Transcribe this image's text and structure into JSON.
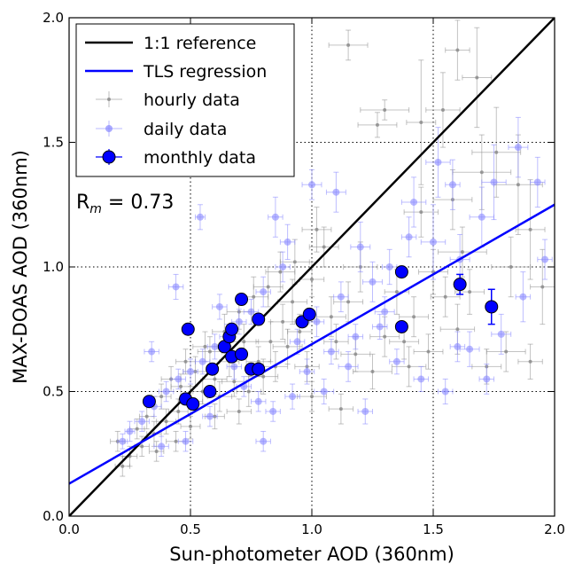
{
  "chart_data": {
    "type": "scatter",
    "xlabel": "Sun-photometer AOD (360nm)",
    "ylabel": "MAX-DOAS AOD (360nm)",
    "xlim": [
      0.0,
      2.0
    ],
    "ylim": [
      0.0,
      2.0
    ],
    "x_ticks": [
      0.0,
      0.5,
      1.0,
      1.5,
      2.0
    ],
    "y_ticks": [
      0.0,
      0.5,
      1.0,
      1.5,
      2.0
    ],
    "x_tick_labels": [
      "0.0",
      "0.5",
      "1.0",
      "1.5",
      "2.0"
    ],
    "y_tick_labels": [
      "0.0",
      "0.5",
      "1.0",
      "1.5",
      "2.0"
    ],
    "grid": "dotted, at major ticks",
    "legend_position": "top-left",
    "annotation": {
      "prefix": "R",
      "subscript": "m",
      "suffix": " = 0.73"
    },
    "series": [
      {
        "name": "1:1 reference",
        "kind": "line",
        "color": "#000000",
        "points": [
          [
            0.0,
            0.0
          ],
          [
            2.0,
            2.0
          ]
        ]
      },
      {
        "name": "TLS regression",
        "kind": "line",
        "color": "#0000ff",
        "points": [
          [
            0.0,
            0.13
          ],
          [
            2.0,
            1.25
          ]
        ]
      },
      {
        "name": "hourly data",
        "kind": "errorbar",
        "color": "#888888",
        "points": [
          [
            1.15,
            1.89,
            0.08,
            0.06
          ],
          [
            1.6,
            1.87,
            0.05,
            0.12
          ],
          [
            1.68,
            1.76,
            0.06,
            0.2
          ],
          [
            1.54,
            1.63,
            0.07,
            0.15
          ],
          [
            1.3,
            1.63,
            0.1,
            0.04
          ],
          [
            1.27,
            1.57,
            0.08,
            0.05
          ],
          [
            1.76,
            1.46,
            0.1,
            0.18
          ],
          [
            1.45,
            1.58,
            0.06,
            0.25
          ],
          [
            1.7,
            1.38,
            0.12,
            0.15
          ],
          [
            1.85,
            1.33,
            0.1,
            0.2
          ],
          [
            1.58,
            1.27,
            0.08,
            0.12
          ],
          [
            1.9,
            1.15,
            0.06,
            0.2
          ],
          [
            1.62,
            1.06,
            0.1,
            0.1
          ],
          [
            1.82,
            1.0,
            0.08,
            0.12
          ],
          [
            1.95,
            0.92,
            0.05,
            0.15
          ],
          [
            1.6,
            0.75,
            0.07,
            0.1
          ],
          [
            1.8,
            0.66,
            0.08,
            0.08
          ],
          [
            1.72,
            0.6,
            0.06,
            0.07
          ],
          [
            1.4,
            0.6,
            0.07,
            0.08
          ],
          [
            1.12,
            0.43,
            0.05,
            0.06
          ],
          [
            1.0,
            0.48,
            0.06,
            0.06
          ],
          [
            1.25,
            0.58,
            0.08,
            0.07
          ],
          [
            1.3,
            0.72,
            0.06,
            0.08
          ],
          [
            1.35,
            0.9,
            0.05,
            0.09
          ],
          [
            1.2,
            1.0,
            0.07,
            0.1
          ],
          [
            1.05,
            1.08,
            0.06,
            0.08
          ],
          [
            1.0,
            0.95,
            0.05,
            0.07
          ],
          [
            0.92,
            0.86,
            0.06,
            0.09
          ],
          [
            0.88,
            0.78,
            0.05,
            0.07
          ],
          [
            0.83,
            0.7,
            0.06,
            0.08
          ],
          [
            0.78,
            0.62,
            0.05,
            0.06
          ],
          [
            0.72,
            0.7,
            0.06,
            0.07
          ],
          [
            0.66,
            0.62,
            0.04,
            0.06
          ],
          [
            0.6,
            0.55,
            0.05,
            0.06
          ],
          [
            0.55,
            0.5,
            0.04,
            0.05
          ],
          [
            0.5,
            0.46,
            0.05,
            0.06
          ],
          [
            0.45,
            0.42,
            0.04,
            0.05
          ],
          [
            0.4,
            0.38,
            0.04,
            0.05
          ],
          [
            0.35,
            0.33,
            0.03,
            0.05
          ],
          [
            0.3,
            0.28,
            0.03,
            0.04
          ],
          [
            0.25,
            0.24,
            0.03,
            0.04
          ],
          [
            0.2,
            0.3,
            0.03,
            0.04
          ],
          [
            0.22,
            0.2,
            0.03,
            0.04
          ],
          [
            0.28,
            0.35,
            0.03,
            0.04
          ],
          [
            0.38,
            0.48,
            0.04,
            0.05
          ],
          [
            0.42,
            0.55,
            0.04,
            0.05
          ],
          [
            0.48,
            0.62,
            0.04,
            0.05
          ],
          [
            0.52,
            0.58,
            0.05,
            0.06
          ],
          [
            0.58,
            0.66,
            0.05,
            0.06
          ],
          [
            0.62,
            0.48,
            0.05,
            0.06
          ],
          [
            0.68,
            0.54,
            0.05,
            0.06
          ],
          [
            0.74,
            0.5,
            0.05,
            0.06
          ],
          [
            0.8,
            0.56,
            0.06,
            0.07
          ],
          [
            0.85,
            0.6,
            0.05,
            0.06
          ],
          [
            0.9,
            0.68,
            0.06,
            0.07
          ],
          [
            0.95,
            0.74,
            0.05,
            0.07
          ],
          [
            1.08,
            0.8,
            0.06,
            0.08
          ],
          [
            1.15,
            0.86,
            0.06,
            0.08
          ],
          [
            1.18,
            0.65,
            0.06,
            0.07
          ],
          [
            1.1,
            0.7,
            0.05,
            0.07
          ],
          [
            0.98,
            0.6,
            0.05,
            0.06
          ],
          [
            0.7,
            0.42,
            0.05,
            0.05
          ],
          [
            0.6,
            0.4,
            0.04,
            0.05
          ],
          [
            0.5,
            0.36,
            0.04,
            0.05
          ],
          [
            0.44,
            0.3,
            0.04,
            0.04
          ],
          [
            0.36,
            0.26,
            0.03,
            0.04
          ],
          [
            0.32,
            0.4,
            0.03,
            0.05
          ],
          [
            0.46,
            0.52,
            0.04,
            0.05
          ],
          [
            0.56,
            0.68,
            0.05,
            0.06
          ],
          [
            0.64,
            0.74,
            0.05,
            0.07
          ],
          [
            0.7,
            0.82,
            0.05,
            0.07
          ],
          [
            0.76,
            0.88,
            0.06,
            0.08
          ],
          [
            0.82,
            0.92,
            0.06,
            0.08
          ],
          [
            0.87,
            0.98,
            0.06,
            0.08
          ],
          [
            0.93,
            1.02,
            0.06,
            0.09
          ],
          [
            1.02,
            1.15,
            0.06,
            0.09
          ],
          [
            1.45,
            1.22,
            0.07,
            0.1
          ],
          [
            1.5,
            0.98,
            0.06,
            0.09
          ],
          [
            1.55,
            0.88,
            0.06,
            0.08
          ],
          [
            1.42,
            0.8,
            0.06,
            0.08
          ],
          [
            1.38,
            0.7,
            0.06,
            0.07
          ],
          [
            1.48,
            0.66,
            0.06,
            0.07
          ],
          [
            1.65,
            0.9,
            0.06,
            0.09
          ],
          [
            1.9,
            0.62,
            0.05,
            0.07
          ]
        ]
      },
      {
        "name": "daily data",
        "kind": "errorbar",
        "color": "#8888ff",
        "points": [
          [
            1.93,
            1.34,
            0.03,
            0.1
          ],
          [
            1.75,
            1.34,
            0.05,
            0.15
          ],
          [
            1.85,
            1.48,
            0.04,
            0.12
          ],
          [
            1.52,
            1.42,
            0.05,
            0.14
          ],
          [
            1.42,
            1.26,
            0.05,
            0.1
          ],
          [
            1.5,
            1.1,
            0.05,
            0.15
          ],
          [
            1.7,
            1.2,
            0.05,
            0.12
          ],
          [
            1.61,
            1.03,
            0.04,
            0.1
          ],
          [
            1.96,
            1.03,
            0.03,
            0.08
          ],
          [
            1.87,
            0.88,
            0.03,
            0.1
          ],
          [
            1.78,
            0.73,
            0.04,
            0.08
          ],
          [
            1.65,
            0.67,
            0.04,
            0.07
          ],
          [
            1.72,
            0.55,
            0.03,
            0.06
          ],
          [
            1.3,
            0.82,
            0.04,
            0.06
          ],
          [
            1.25,
            0.94,
            0.04,
            0.08
          ],
          [
            1.2,
            1.08,
            0.04,
            0.1
          ],
          [
            1.1,
            1.3,
            0.04,
            0.08
          ],
          [
            1.0,
            1.33,
            0.04,
            0.06
          ],
          [
            1.15,
            0.6,
            0.04,
            0.06
          ],
          [
            1.05,
            0.5,
            0.04,
            0.05
          ],
          [
            0.9,
            1.1,
            0.03,
            0.07
          ],
          [
            0.85,
            1.2,
            0.03,
            0.08
          ],
          [
            0.88,
            1.0,
            0.03,
            0.06
          ],
          [
            0.8,
            0.9,
            0.03,
            0.06
          ],
          [
            0.75,
            0.82,
            0.03,
            0.05
          ],
          [
            0.7,
            0.78,
            0.03,
            0.05
          ],
          [
            0.65,
            0.72,
            0.03,
            0.05
          ],
          [
            0.6,
            0.68,
            0.03,
            0.05
          ],
          [
            0.55,
            0.62,
            0.03,
            0.05
          ],
          [
            0.5,
            0.58,
            0.03,
            0.05
          ],
          [
            0.45,
            0.55,
            0.03,
            0.04
          ],
          [
            0.4,
            0.5,
            0.03,
            0.04
          ],
          [
            0.35,
            0.44,
            0.03,
            0.04
          ],
          [
            0.3,
            0.38,
            0.03,
            0.04
          ],
          [
            0.25,
            0.34,
            0.02,
            0.04
          ],
          [
            0.22,
            0.3,
            0.02,
            0.03
          ],
          [
            0.34,
            0.66,
            0.03,
            0.04
          ],
          [
            0.44,
            0.92,
            0.03,
            0.05
          ],
          [
            0.54,
            1.2,
            0.02,
            0.05
          ],
          [
            0.62,
            0.84,
            0.03,
            0.05
          ],
          [
            0.68,
            0.6,
            0.03,
            0.05
          ],
          [
            0.72,
            0.52,
            0.03,
            0.04
          ],
          [
            0.78,
            0.46,
            0.03,
            0.04
          ],
          [
            0.84,
            0.42,
            0.03,
            0.04
          ],
          [
            0.92,
            0.48,
            0.03,
            0.05
          ],
          [
            0.98,
            0.58,
            0.03,
            0.05
          ],
          [
            1.08,
            0.66,
            0.03,
            0.05
          ],
          [
            1.18,
            0.72,
            0.03,
            0.05
          ],
          [
            1.28,
            0.76,
            0.03,
            0.05
          ],
          [
            1.35,
            0.62,
            0.03,
            0.05
          ],
          [
            1.45,
            0.55,
            0.03,
            0.05
          ],
          [
            1.55,
            0.5,
            0.03,
            0.05
          ],
          [
            1.6,
            0.68,
            0.03,
            0.06
          ],
          [
            1.32,
            1.0,
            0.03,
            0.07
          ],
          [
            1.4,
            1.12,
            0.03,
            0.08
          ],
          [
            1.58,
            1.33,
            0.03,
            0.1
          ],
          [
            1.12,
            0.88,
            0.03,
            0.06
          ],
          [
            1.02,
            0.78,
            0.03,
            0.06
          ],
          [
            0.94,
            0.7,
            0.03,
            0.05
          ],
          [
            0.58,
            0.4,
            0.03,
            0.04
          ],
          [
            0.48,
            0.3,
            0.03,
            0.04
          ],
          [
            0.38,
            0.28,
            0.03,
            0.04
          ],
          [
            0.8,
            0.3,
            0.03,
            0.04
          ],
          [
            1.22,
            0.42,
            0.03,
            0.05
          ]
        ]
      },
      {
        "name": "monthly data",
        "kind": "errorbar",
        "color": "#0000ff",
        "points": [
          [
            0.33,
            0.46,
            0.0,
            0.0
          ],
          [
            0.48,
            0.47,
            0.0,
            0.0
          ],
          [
            0.51,
            0.45,
            0.0,
            0.0
          ],
          [
            0.49,
            0.75,
            0.0,
            0.0
          ],
          [
            0.58,
            0.5,
            0.0,
            0.0
          ],
          [
            0.59,
            0.59,
            0.0,
            0.0
          ],
          [
            0.64,
            0.68,
            0.0,
            0.0
          ],
          [
            0.66,
            0.72,
            0.0,
            0.0
          ],
          [
            0.67,
            0.75,
            0.0,
            0.0
          ],
          [
            0.67,
            0.64,
            0.0,
            0.0
          ],
          [
            0.71,
            0.65,
            0.0,
            0.0
          ],
          [
            0.71,
            0.87,
            0.0,
            0.0
          ],
          [
            0.75,
            0.59,
            0.0,
            0.0
          ],
          [
            0.78,
            0.59,
            0.0,
            0.0
          ],
          [
            0.78,
            0.79,
            0.0,
            0.0
          ],
          [
            0.96,
            0.78,
            0.0,
            0.0
          ],
          [
            0.99,
            0.81,
            0.0,
            0.0
          ],
          [
            1.37,
            0.98,
            0.0,
            0.0
          ],
          [
            1.37,
            0.76,
            0.0,
            0.0
          ],
          [
            1.61,
            0.93,
            0.0,
            0.04
          ],
          [
            1.74,
            0.84,
            0.0,
            0.07
          ]
        ]
      }
    ]
  }
}
